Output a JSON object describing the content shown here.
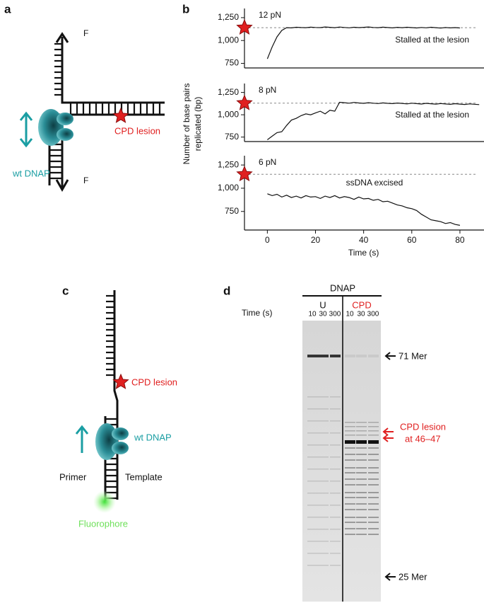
{
  "panels": {
    "a": {
      "letter": "a",
      "force_top": "F",
      "force_bottom": "F",
      "lesion": "CPD lesion",
      "polymerase": "wt DNAP"
    },
    "b": {
      "letter": "b"
    },
    "c": {
      "letter": "c",
      "lesion": "CPD lesion",
      "polymerase": "wt DNAP",
      "primer": "Primer",
      "template": "Template",
      "fluorophore": "Fluorophore"
    },
    "d": {
      "letter": "d",
      "header": "DNAP",
      "group_u": "U",
      "group_cpd": "CPD",
      "time_label": "Time (s)",
      "lanes": [
        "10",
        "30",
        "300",
        "10",
        "30",
        "300"
      ],
      "marker_top": "71 Mer",
      "lesion_line1": "CPD lesion",
      "lesion_line2": "at 46–47",
      "marker_bottom": "25 Mer"
    }
  },
  "chart_data": [
    {
      "type": "line",
      "title": "12 pN",
      "annotation": "Stalled at the lesion",
      "color": "#111111",
      "xlim": [
        -9.5,
        90
      ],
      "ylim": [
        700,
        1350
      ],
      "yticks": [
        {
          "value": 750,
          "label": "750"
        },
        {
          "value": 1000,
          "label": "1,000"
        },
        {
          "value": 1250,
          "label": "1,250"
        }
      ],
      "reference_line": 1140,
      "x": [
        0,
        2,
        4,
        6,
        8,
        10,
        12,
        14,
        16,
        18,
        20,
        22,
        24,
        26,
        28,
        30,
        32,
        34,
        36,
        38,
        40,
        42,
        44,
        46,
        48,
        50,
        52,
        54,
        56,
        58,
        60,
        62,
        64,
        66,
        68,
        70,
        72,
        74,
        76,
        78,
        80
      ],
      "values": [
        800,
        930,
        1040,
        1110,
        1140,
        1138,
        1145,
        1142,
        1140,
        1146,
        1143,
        1141,
        1148,
        1144,
        1140,
        1147,
        1143,
        1139,
        1145,
        1141,
        1144,
        1148,
        1143,
        1140,
        1146,
        1142,
        1138,
        1144,
        1140,
        1145,
        1141,
        1137,
        1143,
        1139,
        1145,
        1140,
        1136,
        1142,
        1138,
        1141,
        1137
      ]
    },
    {
      "type": "line",
      "title": "8 pN",
      "annotation": "Stalled at the lesion",
      "color": "#111111",
      "y_label": [
        "Number of base pairs",
        "replicated (bp)"
      ],
      "xlim": [
        -9.5,
        90
      ],
      "ylim": [
        700,
        1350
      ],
      "yticks": [
        {
          "value": 750,
          "label": "750"
        },
        {
          "value": 1000,
          "label": "1,000"
        },
        {
          "value": 1250,
          "label": "1,250"
        }
      ],
      "reference_line": 1130,
      "x": [
        0,
        2,
        4,
        6,
        8,
        10,
        12,
        14,
        16,
        18,
        20,
        22,
        24,
        26,
        28,
        30,
        32,
        34,
        36,
        38,
        40,
        42,
        44,
        46,
        48,
        50,
        52,
        54,
        56,
        58,
        60,
        62,
        64,
        66,
        68,
        70,
        72,
        74,
        76,
        78,
        80,
        82,
        84,
        86,
        88
      ],
      "values": [
        720,
        760,
        800,
        810,
        880,
        940,
        960,
        990,
        1010,
        1000,
        1020,
        1040,
        1010,
        1050,
        1040,
        1140,
        1135,
        1130,
        1138,
        1132,
        1128,
        1135,
        1130,
        1126,
        1133,
        1128,
        1125,
        1131,
        1127,
        1122,
        1130,
        1125,
        1120,
        1128,
        1123,
        1119,
        1126,
        1121,
        1117,
        1124,
        1119,
        1115,
        1122,
        1118,
        1114
      ]
    },
    {
      "type": "line",
      "title": "6 pN",
      "annotation": "ssDNA excised",
      "color": "#111111",
      "x_label": "Time (s)",
      "xlim": [
        -9.5,
        90
      ],
      "ylim": [
        550,
        1350
      ],
      "xticks": [
        0,
        20,
        40,
        60,
        80
      ],
      "yticks": [
        {
          "value": 750,
          "label": "750"
        },
        {
          "value": 1000,
          "label": "1,000"
        },
        {
          "value": 1250,
          "label": "1,250"
        }
      ],
      "reference_line": 1150,
      "x": [
        0,
        2,
        4,
        6,
        8,
        10,
        12,
        14,
        16,
        18,
        20,
        22,
        24,
        26,
        28,
        30,
        32,
        34,
        36,
        38,
        40,
        42,
        44,
        46,
        48,
        50,
        52,
        54,
        56,
        58,
        60,
        62,
        64,
        66,
        68,
        70,
        72,
        74,
        76,
        78,
        80
      ],
      "values": [
        940,
        920,
        935,
        905,
        925,
        900,
        915,
        895,
        920,
        905,
        910,
        890,
        915,
        900,
        920,
        895,
        910,
        900,
        880,
        905,
        885,
        890,
        870,
        880,
        855,
        860,
        840,
        820,
        810,
        790,
        780,
        760,
        720,
        690,
        660,
        650,
        640,
        620,
        630,
        610,
        600
      ]
    }
  ]
}
